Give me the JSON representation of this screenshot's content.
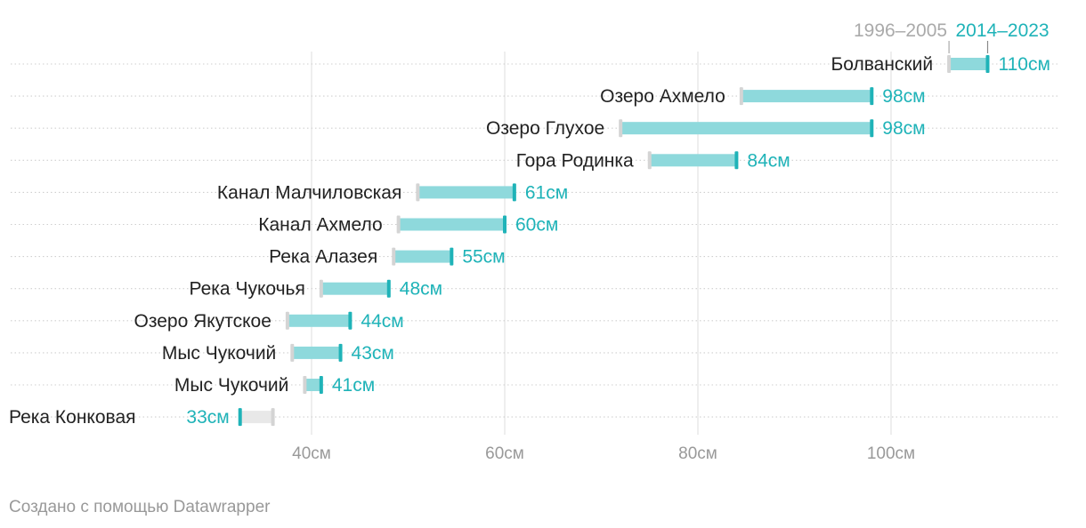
{
  "chart_data": {
    "type": "dumbbell",
    "legend": {
      "start_label": "1996–2005",
      "end_label": "2014–2023"
    },
    "unit": "см",
    "x_ticks": [
      40,
      60,
      80,
      100
    ],
    "x_range": [
      22,
      122
    ],
    "rows": [
      {
        "name": "Болванский",
        "start": 106,
        "end": 110,
        "label": "110см"
      },
      {
        "name": "Озеро Ахмело",
        "start": 84.5,
        "end": 98,
        "label": "98см"
      },
      {
        "name": "Озеро Глухое",
        "start": 72,
        "end": 98,
        "label": "98см"
      },
      {
        "name": "Гора Родинка",
        "start": 75,
        "end": 84,
        "label": "84см"
      },
      {
        "name": "Канал Малчиловская",
        "start": 51,
        "end": 61,
        "label": "61см"
      },
      {
        "name": "Канал Ахмело",
        "start": 49,
        "end": 60,
        "label": "60см"
      },
      {
        "name": "Река Алазея",
        "start": 48.5,
        "end": 54.5,
        "label": "55см"
      },
      {
        "name": "Река Чукочья",
        "start": 41,
        "end": 48,
        "label": "48см"
      },
      {
        "name": "Озеро Якутское",
        "start": 37.5,
        "end": 44,
        "label": "44см"
      },
      {
        "name": "Мыс Чукочий",
        "start": 38,
        "end": 43,
        "label": "43см"
      },
      {
        "name": "Мыс Чукочий",
        "start": 39.3,
        "end": 41,
        "label": "41см"
      },
      {
        "name": "Река Конковая",
        "start": 36,
        "end": 32.6,
        "label": "33см"
      }
    ],
    "colors": {
      "end": "#1fb3b8",
      "bar_increase": "#8ed9dc",
      "start": "#d4d4d4",
      "bar_decrease": "#e8e8e8",
      "grid": "#dddddd",
      "dots": "#cfcfcf",
      "text": "#222222",
      "axis_text": "#999999"
    }
  },
  "footer": {
    "credit": "Создано с помощью Datawrapper"
  }
}
